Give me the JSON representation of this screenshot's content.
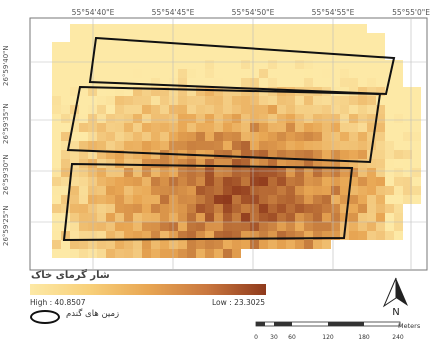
{
  "map": {
    "top_coords": [
      "55°54'40\"E",
      "55°54'45\"E",
      "55°54'50\"E",
      "55°54'55\"E",
      "55°55'0\"E"
    ],
    "left_coords": [
      "26°59'40\"N",
      "26°59'35\"N",
      "26°59'30\"N",
      "26°59'25\"N"
    ],
    "raster_colors": {
      "low": "#fde9a6",
      "mid": "#e8a653",
      "high": "#8f3a1c",
      "field_outline": "#111111"
    }
  },
  "legend": {
    "title": "شار گرمای خاک",
    "high_label": "High : 40.8507",
    "low_label": "Low : 23.3025",
    "fields_label": "زمین های گندم"
  },
  "north_arrow": {
    "letter": "N"
  },
  "scalebar": {
    "ticks": [
      "0",
      "30",
      "60",
      "120",
      "180",
      "240"
    ],
    "units": "Meters"
  }
}
